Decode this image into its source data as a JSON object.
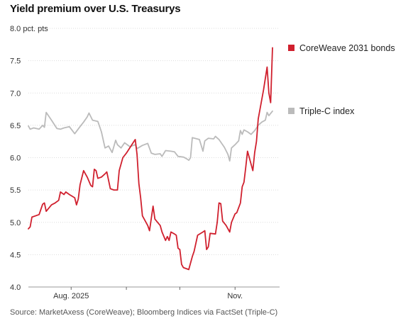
{
  "chart_data": {
    "type": "line",
    "title": "Yield premium over U.S. Treasurys",
    "source": "Source: MarketAxess (CoreWeave); Bloomberg Indices via FactSet (Triple-C)",
    "ylim": [
      4.0,
      8.0
    ],
    "y_ticks": [
      {
        "value": 4.0,
        "label": "4.0"
      },
      {
        "value": 4.5,
        "label": "4.5"
      },
      {
        "value": 5.0,
        "label": "5.0"
      },
      {
        "value": 5.5,
        "label": "5.5"
      },
      {
        "value": 6.0,
        "label": "6.0"
      },
      {
        "value": 6.5,
        "label": "6.5"
      },
      {
        "value": 7.0,
        "label": "7.0"
      },
      {
        "value": 7.5,
        "label": "7.5"
      },
      {
        "value": 8.0,
        "label": "8.0 pct. pts"
      }
    ],
    "x_ticks": [
      {
        "date": "2025-08-01",
        "label": "Aug. 2025"
      },
      {
        "date": "2025-09-01",
        "label": ""
      },
      {
        "date": "2025-10-01",
        "label": ""
      },
      {
        "date": "2025-11-01",
        "label": "Nov."
      }
    ],
    "xlim": [
      "2025-07-08",
      "2025-11-26"
    ],
    "grid": "horizontal",
    "legend": "right",
    "series": [
      {
        "name": "CoreWeave 2031 bonds",
        "color": "#d0202e",
        "points": [
          [
            "2025-07-08",
            4.9
          ],
          [
            "2025-07-09",
            4.93
          ],
          [
            "2025-07-10",
            5.08
          ],
          [
            "2025-07-14",
            5.12
          ],
          [
            "2025-07-16",
            5.28
          ],
          [
            "2025-07-17",
            5.3
          ],
          [
            "2025-07-18",
            5.17
          ],
          [
            "2025-07-21",
            5.27
          ],
          [
            "2025-07-23",
            5.3
          ],
          [
            "2025-07-25",
            5.34
          ],
          [
            "2025-07-26",
            5.47
          ],
          [
            "2025-07-28",
            5.43
          ],
          [
            "2025-07-29",
            5.47
          ],
          [
            "2025-07-31",
            5.43
          ],
          [
            "2025-08-03",
            5.38
          ],
          [
            "2025-08-04",
            5.27
          ],
          [
            "2025-08-05",
            5.36
          ],
          [
            "2025-08-06",
            5.58
          ],
          [
            "2025-08-08",
            5.8
          ],
          [
            "2025-08-10",
            5.7
          ],
          [
            "2025-08-12",
            5.57
          ],
          [
            "2025-08-13",
            5.55
          ],
          [
            "2025-08-14",
            5.82
          ],
          [
            "2025-08-15",
            5.8
          ],
          [
            "2025-08-16",
            5.68
          ],
          [
            "2025-08-18",
            5.7
          ],
          [
            "2025-08-20",
            5.75
          ],
          [
            "2025-08-21",
            5.78
          ],
          [
            "2025-08-23",
            5.52
          ],
          [
            "2025-08-25",
            5.5
          ],
          [
            "2025-08-27",
            5.5
          ],
          [
            "2025-08-28",
            5.8
          ],
          [
            "2025-08-30",
            6.0
          ],
          [
            "2025-09-01",
            6.07
          ],
          [
            "2025-09-05",
            6.24
          ],
          [
            "2025-09-06",
            6.28
          ],
          [
            "2025-09-07",
            6.05
          ],
          [
            "2025-09-08",
            5.6
          ],
          [
            "2025-09-09",
            5.38
          ],
          [
            "2025-09-10",
            5.1
          ],
          [
            "2025-09-13",
            4.95
          ],
          [
            "2025-09-14",
            4.87
          ],
          [
            "2025-09-16",
            5.25
          ],
          [
            "2025-09-17",
            5.05
          ],
          [
            "2025-09-20",
            4.95
          ],
          [
            "2025-09-21",
            4.85
          ],
          [
            "2025-09-23",
            4.72
          ],
          [
            "2025-09-24",
            4.78
          ],
          [
            "2025-09-25",
            4.72
          ],
          [
            "2025-09-26",
            4.85
          ],
          [
            "2025-09-28",
            4.82
          ],
          [
            "2025-09-29",
            4.8
          ],
          [
            "2025-09-30",
            4.6
          ],
          [
            "2025-10-01",
            4.58
          ],
          [
            "2025-10-02",
            4.35
          ],
          [
            "2025-10-03",
            4.3
          ],
          [
            "2025-10-06",
            4.27
          ],
          [
            "2025-10-08",
            4.47
          ],
          [
            "2025-10-09",
            4.55
          ],
          [
            "2025-10-11",
            4.8
          ],
          [
            "2025-10-14",
            4.85
          ],
          [
            "2025-10-15",
            4.87
          ],
          [
            "2025-10-16",
            4.58
          ],
          [
            "2025-10-17",
            4.62
          ],
          [
            "2025-10-18",
            4.83
          ],
          [
            "2025-10-21",
            4.82
          ],
          [
            "2025-10-22",
            5.0
          ],
          [
            "2025-10-23",
            5.3
          ],
          [
            "2025-10-24",
            5.29
          ],
          [
            "2025-10-25",
            5.02
          ],
          [
            "2025-10-27",
            4.95
          ],
          [
            "2025-10-29",
            4.85
          ],
          [
            "2025-10-30",
            5.0
          ],
          [
            "2025-11-01",
            5.13
          ],
          [
            "2025-11-02",
            5.15
          ],
          [
            "2025-11-04",
            5.3
          ],
          [
            "2025-11-05",
            5.55
          ],
          [
            "2025-11-06",
            5.62
          ],
          [
            "2025-11-07",
            5.85
          ],
          [
            "2025-11-08",
            6.1
          ],
          [
            "2025-11-09",
            6.0
          ],
          [
            "2025-11-11",
            5.8
          ],
          [
            "2025-11-12",
            6.08
          ],
          [
            "2025-11-13",
            6.25
          ],
          [
            "2025-11-14",
            6.6
          ],
          [
            "2025-11-15",
            6.75
          ],
          [
            "2025-11-17",
            7.05
          ],
          [
            "2025-11-19",
            7.4
          ],
          [
            "2025-11-20",
            7.0
          ],
          [
            "2025-11-21",
            6.85
          ],
          [
            "2025-11-22",
            7.7
          ]
        ]
      },
      {
        "name": "Triple-C index",
        "color": "#bbbbbb",
        "points": [
          [
            "2025-07-08",
            6.49
          ],
          [
            "2025-07-09",
            6.44
          ],
          [
            "2025-07-11",
            6.46
          ],
          [
            "2025-07-14",
            6.44
          ],
          [
            "2025-07-16",
            6.5
          ],
          [
            "2025-07-17",
            6.47
          ],
          [
            "2025-07-18",
            6.7
          ],
          [
            "2025-07-21",
            6.58
          ],
          [
            "2025-07-24",
            6.45
          ],
          [
            "2025-07-26",
            6.44
          ],
          [
            "2025-07-28",
            6.46
          ],
          [
            "2025-07-31",
            6.48
          ],
          [
            "2025-08-03",
            6.37
          ],
          [
            "2025-08-06",
            6.48
          ],
          [
            "2025-08-08",
            6.55
          ],
          [
            "2025-08-10",
            6.63
          ],
          [
            "2025-08-11",
            6.69
          ],
          [
            "2025-08-13",
            6.58
          ],
          [
            "2025-08-16",
            6.56
          ],
          [
            "2025-08-18",
            6.4
          ],
          [
            "2025-08-20",
            6.15
          ],
          [
            "2025-08-22",
            6.18
          ],
          [
            "2025-08-24",
            6.08
          ],
          [
            "2025-08-26",
            6.27
          ],
          [
            "2025-08-27",
            6.2
          ],
          [
            "2025-08-29",
            6.15
          ],
          [
            "2025-08-31",
            6.23
          ],
          [
            "2025-09-03",
            6.17
          ],
          [
            "2025-09-06",
            6.2
          ],
          [
            "2025-09-07",
            6.14
          ],
          [
            "2025-09-10",
            6.19
          ],
          [
            "2025-09-13",
            6.22
          ],
          [
            "2025-09-15",
            6.07
          ],
          [
            "2025-09-17",
            6.05
          ],
          [
            "2025-09-20",
            6.06
          ],
          [
            "2025-09-21",
            6.02
          ],
          [
            "2025-09-23",
            6.11
          ],
          [
            "2025-09-26",
            6.1
          ],
          [
            "2025-09-28",
            6.09
          ],
          [
            "2025-09-30",
            6.02
          ],
          [
            "2025-10-03",
            6.01
          ],
          [
            "2025-10-05",
            5.98
          ],
          [
            "2025-10-06",
            5.96
          ],
          [
            "2025-10-07",
            6.0
          ],
          [
            "2025-10-08",
            6.31
          ],
          [
            "2025-10-12",
            6.28
          ],
          [
            "2025-10-14",
            6.1
          ],
          [
            "2025-10-15",
            6.26
          ],
          [
            "2025-10-17",
            6.3
          ],
          [
            "2025-10-20",
            6.29
          ],
          [
            "2025-10-21",
            6.33
          ],
          [
            "2025-10-23",
            6.28
          ],
          [
            "2025-10-26",
            6.16
          ],
          [
            "2025-10-28",
            6.05
          ],
          [
            "2025-10-29",
            5.95
          ],
          [
            "2025-10-30",
            6.15
          ],
          [
            "2025-11-01",
            6.2
          ],
          [
            "2025-11-03",
            6.26
          ],
          [
            "2025-11-04",
            6.42
          ],
          [
            "2025-11-05",
            6.36
          ],
          [
            "2025-11-06",
            6.43
          ],
          [
            "2025-11-08",
            6.4
          ],
          [
            "2025-11-10",
            6.36
          ],
          [
            "2025-11-12",
            6.42
          ],
          [
            "2025-11-14",
            6.5
          ],
          [
            "2025-11-16",
            6.55
          ],
          [
            "2025-11-18",
            6.58
          ],
          [
            "2025-11-19",
            6.7
          ],
          [
            "2025-11-20",
            6.65
          ],
          [
            "2025-11-22",
            6.72
          ]
        ]
      }
    ]
  }
}
